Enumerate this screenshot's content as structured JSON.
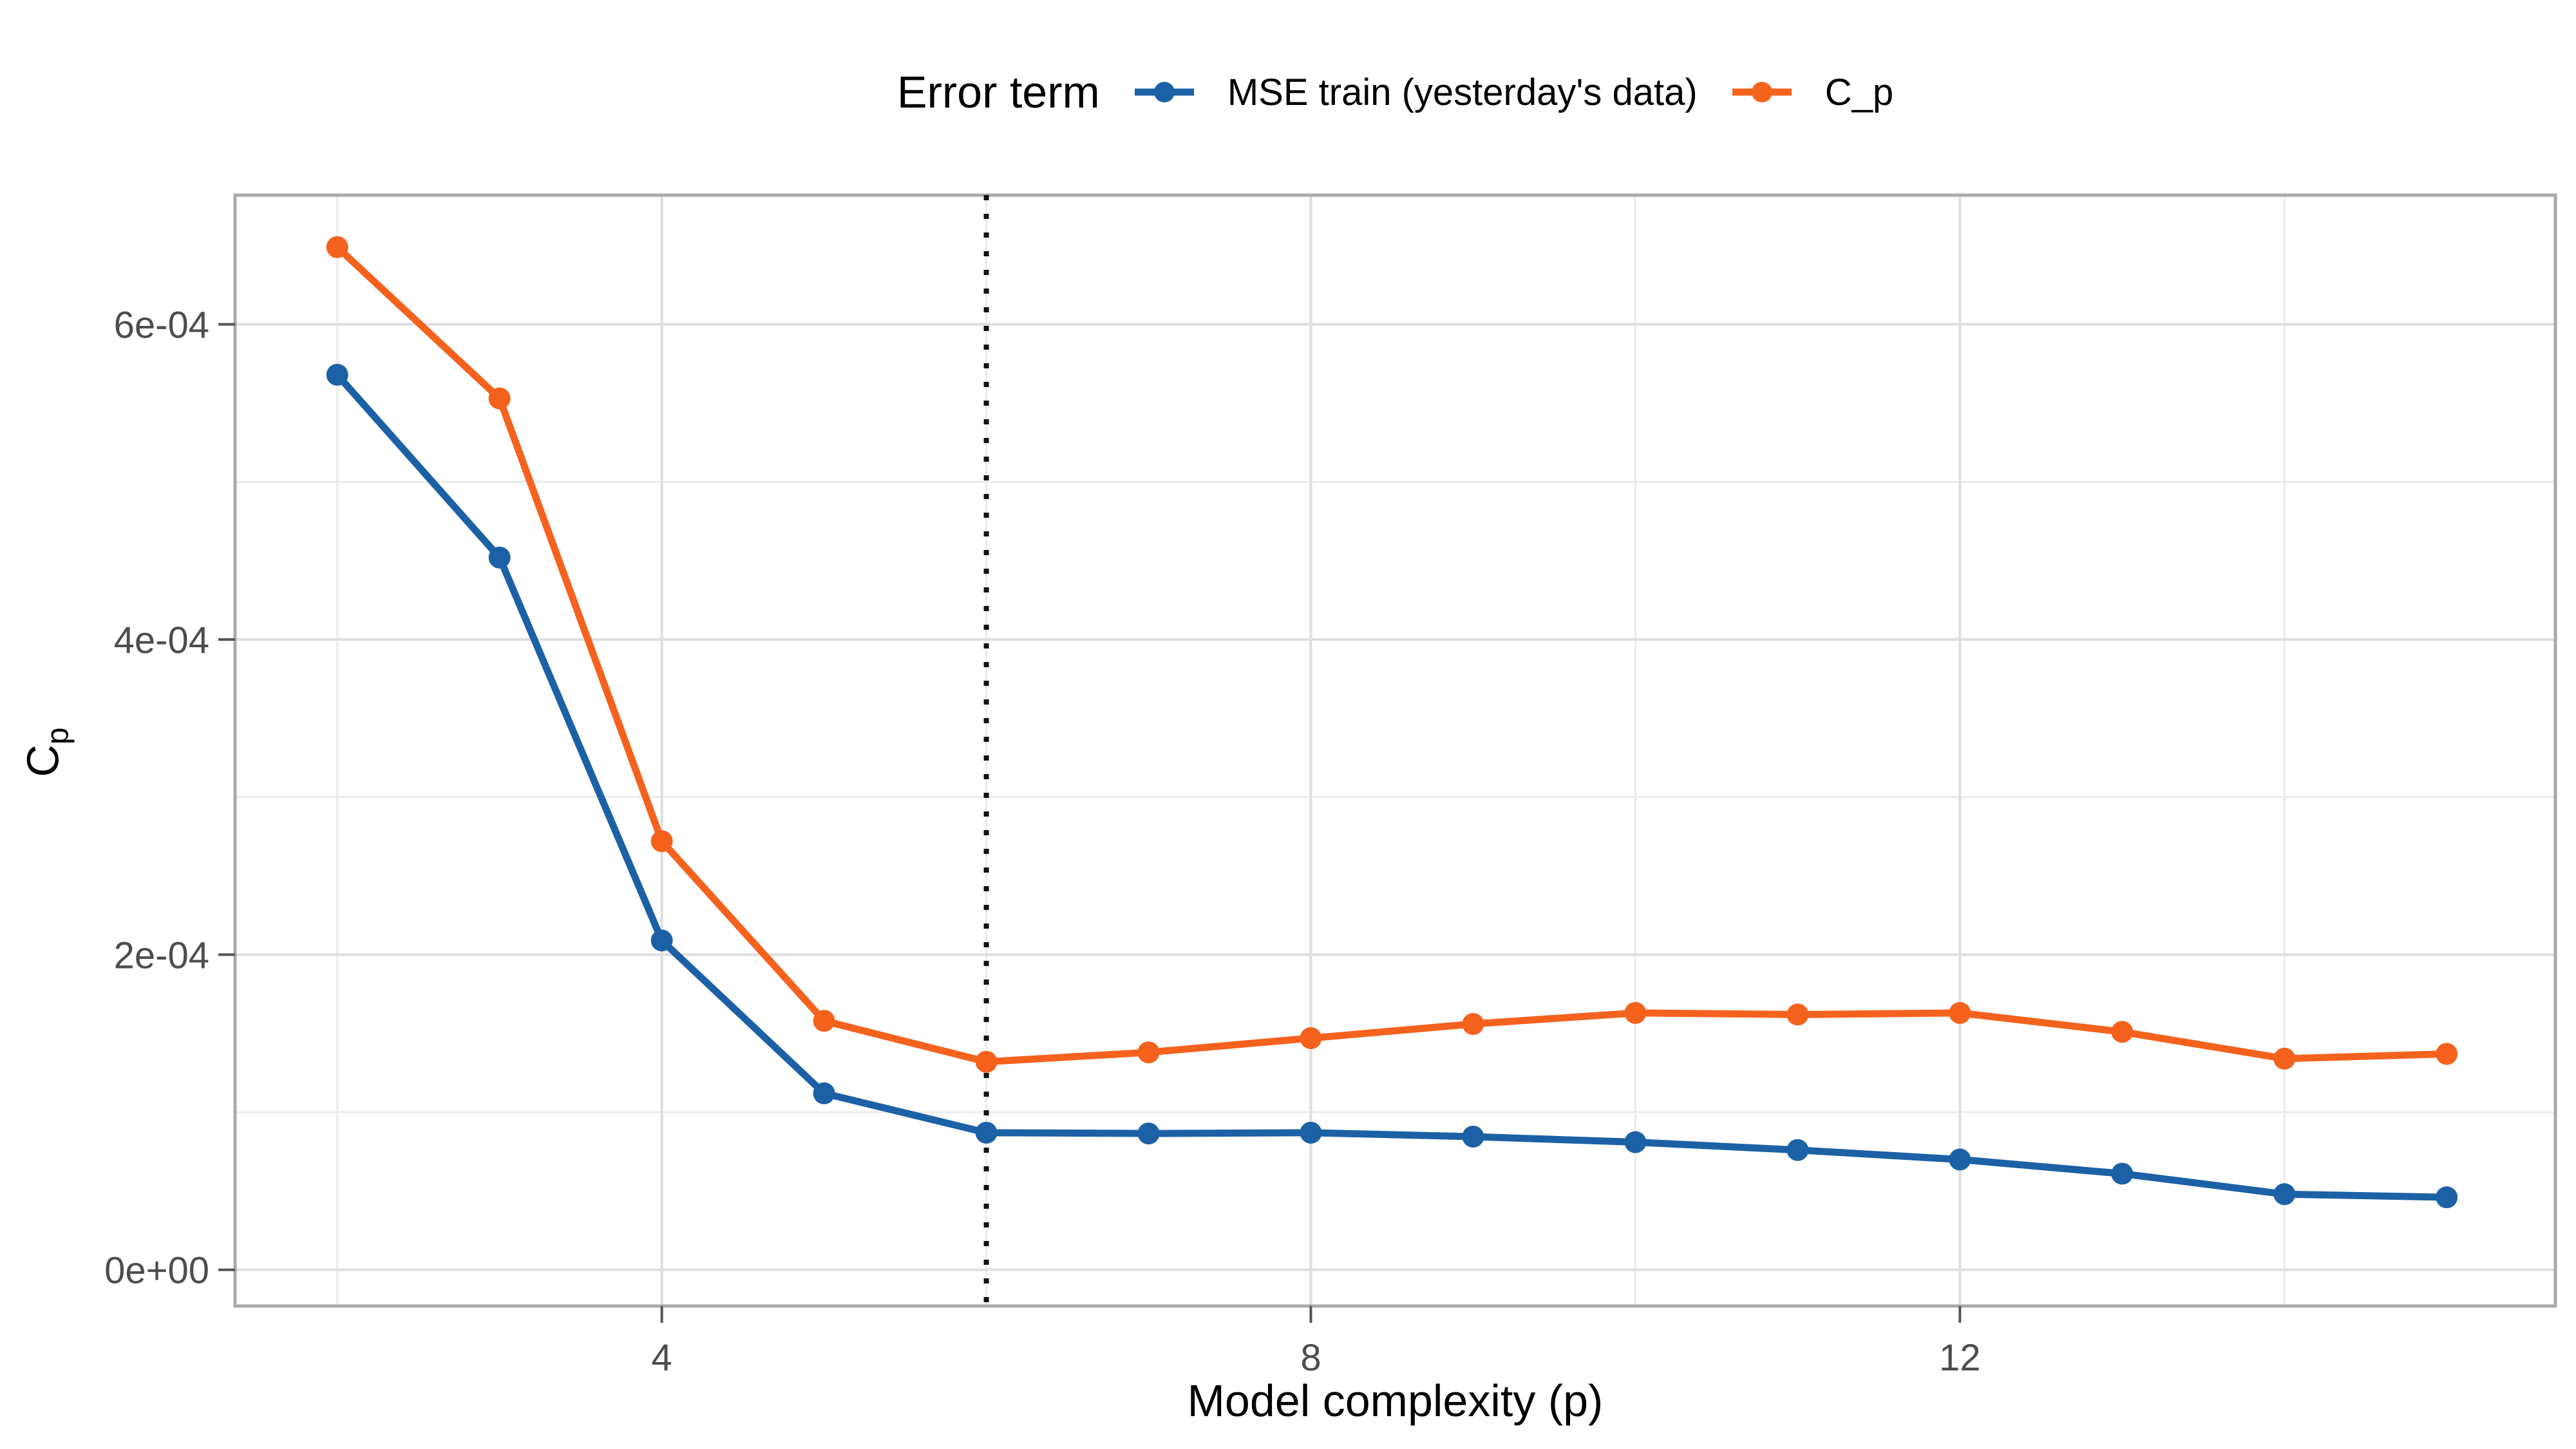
{
  "legend": {
    "title": "Error term",
    "items": [
      {
        "label": "MSE train (yesterday's data)",
        "color": "#1C61A5"
      },
      {
        "label": "C_p",
        "color": "#F4621D"
      }
    ]
  },
  "x_axis": {
    "title": "Model complexity (p)",
    "ticks": [
      {
        "value": 4,
        "label": "4"
      },
      {
        "value": 8,
        "label": "8"
      },
      {
        "value": 12,
        "label": "12"
      }
    ],
    "minor_gridlines": [
      2,
      6,
      10,
      14
    ]
  },
  "y_axis": {
    "title_main": "C",
    "title_sub": "p",
    "ticks": [
      {
        "value": 0.0,
        "label": "0e+00"
      },
      {
        "value": 0.0002,
        "label": "2e-04"
      },
      {
        "value": 0.0004,
        "label": "4e-04"
      },
      {
        "value": 0.0006,
        "label": "6e-04"
      }
    ],
    "minor_gridlines": [
      0.0001,
      0.0003,
      0.0005
    ]
  },
  "chart_data": {
    "type": "line",
    "title": "",
    "xlabel": "Model complexity (p)",
    "ylabel": "C_p",
    "legend_position": "top",
    "grid": true,
    "xlim": [
      1.37,
      15.67
    ],
    "ylim": [
      -2.3e-05,
      0.000682
    ],
    "x": [
      2,
      3,
      4,
      5,
      6,
      7,
      8,
      9,
      10,
      11,
      12,
      13,
      14,
      15
    ],
    "series": [
      {
        "name": "MSE train (yesterday's data)",
        "color": "#1C61A5",
        "values": [
          0.000568,
          0.000452,
          0.000209,
          0.000112,
          8.7e-05,
          8.65e-05,
          8.7e-05,
          8.45e-05,
          8.1e-05,
          7.6e-05,
          7e-05,
          6.1e-05,
          4.8e-05,
          4.6e-05
        ]
      },
      {
        "name": "C_p",
        "color": "#F4621D",
        "values": [
          0.000649,
          0.000553,
          0.000272,
          0.000158,
          0.000132,
          0.000138,
          0.000147,
          0.000156,
          0.000163,
          0.000162,
          0.000163,
          0.000151,
          0.000134,
          0.000137
        ]
      }
    ],
    "annotations": {
      "vline_x": 6,
      "vline_style": "dotted",
      "vline_color": "#111111"
    }
  },
  "style": {
    "panel_border_color": "#a9a9a9",
    "major_grid_color": "#dedede",
    "minor_grid_color": "#ebebeb",
    "tick_color": "#555555",
    "tick_label_color": "#4d4d4d"
  }
}
